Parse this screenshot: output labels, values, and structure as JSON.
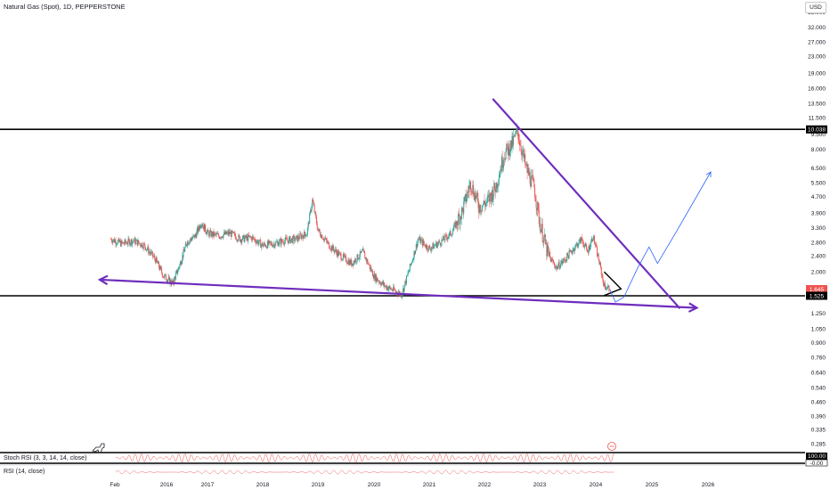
{
  "header": {
    "symbol_title": "Natural Gas (Spot), 1D, PEPPERSTONE",
    "currency": "USD"
  },
  "indicators": {
    "stoch_rsi_label": "Stoch RSI (3, 3, 14, 14, close)",
    "rsi_label": "RSI (14, close)",
    "stoch_badge": "100.00",
    "stoch_badge2": "-0.00"
  },
  "colors": {
    "candle_up": "#26a69a",
    "candle_down": "#ef5350",
    "trendline": "#6f2dbd",
    "horizontal_line": "#000000",
    "projection": "#2962ff",
    "price_badge": "#ef5350"
  },
  "chart_data": {
    "type": "candlestick",
    "scale": "log",
    "y_tick_labels": [
      "38.000",
      "32.000",
      "27.000",
      "23.000",
      "19.000",
      "16.000",
      "13.500",
      "11.500",
      "9.500",
      "8.000",
      "6.500",
      "5.500",
      "4.700",
      "3.900",
      "3.300",
      "2.800",
      "2.400",
      "2.000",
      "1.645",
      "1.525",
      "1.250",
      "1.050",
      "0.900",
      "0.760",
      "0.640",
      "0.540",
      "0.460",
      "0.390",
      "0.335",
      "0.285"
    ],
    "x_tick_labels": [
      "Feb",
      "2016",
      "2017",
      "2018",
      "2019",
      "2020",
      "2021",
      "2022",
      "2023",
      "2024",
      "2025",
      "2026"
    ],
    "price_markers": [
      {
        "label": "10.038",
        "value": 10.038
      },
      {
        "label": "1.645",
        "value": 1.645
      },
      {
        "label": "1.525",
        "value": 1.525
      }
    ],
    "horizontal_lines": [
      10.038,
      1.525
    ],
    "price_series": [
      {
        "x": 2015.0,
        "y": 2.9
      },
      {
        "x": 2015.2,
        "y": 2.75
      },
      {
        "x": 2015.4,
        "y": 2.85
      },
      {
        "x": 2015.6,
        "y": 2.7
      },
      {
        "x": 2015.8,
        "y": 2.3
      },
      {
        "x": 2015.95,
        "y": 1.9
      },
      {
        "x": 2016.15,
        "y": 1.75
      },
      {
        "x": 2016.3,
        "y": 2.1
      },
      {
        "x": 2016.5,
        "y": 2.8
      },
      {
        "x": 2016.7,
        "y": 3.0
      },
      {
        "x": 2016.85,
        "y": 3.5
      },
      {
        "x": 2017.0,
        "y": 3.1
      },
      {
        "x": 2017.2,
        "y": 3.0
      },
      {
        "x": 2017.4,
        "y": 3.1
      },
      {
        "x": 2017.6,
        "y": 2.9
      },
      {
        "x": 2017.8,
        "y": 2.95
      },
      {
        "x": 2018.0,
        "y": 2.7
      },
      {
        "x": 2018.2,
        "y": 2.75
      },
      {
        "x": 2018.4,
        "y": 2.85
      },
      {
        "x": 2018.6,
        "y": 2.9
      },
      {
        "x": 2018.8,
        "y": 3.1
      },
      {
        "x": 2018.9,
        "y": 4.5
      },
      {
        "x": 2019.0,
        "y": 3.2
      },
      {
        "x": 2019.2,
        "y": 2.7
      },
      {
        "x": 2019.4,
        "y": 2.4
      },
      {
        "x": 2019.6,
        "y": 2.2
      },
      {
        "x": 2019.8,
        "y": 2.5
      },
      {
        "x": 2020.0,
        "y": 1.9
      },
      {
        "x": 2020.2,
        "y": 1.7
      },
      {
        "x": 2020.4,
        "y": 1.6
      },
      {
        "x": 2020.5,
        "y": 1.55
      },
      {
        "x": 2020.65,
        "y": 2.1
      },
      {
        "x": 2020.8,
        "y": 2.9
      },
      {
        "x": 2021.0,
        "y": 2.6
      },
      {
        "x": 2021.2,
        "y": 2.8
      },
      {
        "x": 2021.4,
        "y": 3.1
      },
      {
        "x": 2021.6,
        "y": 4.0
      },
      {
        "x": 2021.75,
        "y": 5.5
      },
      {
        "x": 2021.9,
        "y": 4.2
      },
      {
        "x": 2022.05,
        "y": 4.4
      },
      {
        "x": 2022.2,
        "y": 5.2
      },
      {
        "x": 2022.35,
        "y": 7.5
      },
      {
        "x": 2022.5,
        "y": 8.5
      },
      {
        "x": 2022.6,
        "y": 9.8
      },
      {
        "x": 2022.75,
        "y": 6.5
      },
      {
        "x": 2022.9,
        "y": 5.2
      },
      {
        "x": 2023.0,
        "y": 3.5
      },
      {
        "x": 2023.15,
        "y": 2.4
      },
      {
        "x": 2023.3,
        "y": 2.1
      },
      {
        "x": 2023.45,
        "y": 2.3
      },
      {
        "x": 2023.6,
        "y": 2.6
      },
      {
        "x": 2023.75,
        "y": 2.9
      },
      {
        "x": 2023.85,
        "y": 2.5
      },
      {
        "x": 2023.95,
        "y": 3.0
      },
      {
        "x": 2024.05,
        "y": 2.3
      },
      {
        "x": 2024.15,
        "y": 1.7
      },
      {
        "x": 2024.25,
        "y": 1.645
      }
    ],
    "projection_path": [
      {
        "x": 2024.25,
        "y": 1.645
      },
      {
        "x": 2024.35,
        "y": 1.42
      },
      {
        "x": 2024.5,
        "y": 1.5
      },
      {
        "x": 2024.75,
        "y": 2.1
      },
      {
        "x": 2024.95,
        "y": 2.65
      },
      {
        "x": 2025.1,
        "y": 2.2
      },
      {
        "x": 2025.45,
        "y": 3.2
      },
      {
        "x": 2026.05,
        "y": 6.2
      }
    ],
    "trendlines": [
      {
        "name": "upper-descending",
        "from": {
          "x": 2022.15,
          "y": 14.2
        },
        "to": {
          "x": 2025.5,
          "y": 1.32
        }
      },
      {
        "name": "lower-descending",
        "from": {
          "x": 2014.8,
          "y": 1.83
        },
        "to": {
          "x": 2025.8,
          "y": 1.33
        }
      }
    ],
    "triangle_pattern": [
      {
        "x": 2024.15,
        "y": 2.0
      },
      {
        "x": 2024.45,
        "y": 1.65
      },
      {
        "x": 2024.15,
        "y": 1.53
      }
    ],
    "x_range": [
      2014.5,
      2026.8
    ],
    "y_range": [
      0.28,
      38.5
    ],
    "grid": false
  }
}
